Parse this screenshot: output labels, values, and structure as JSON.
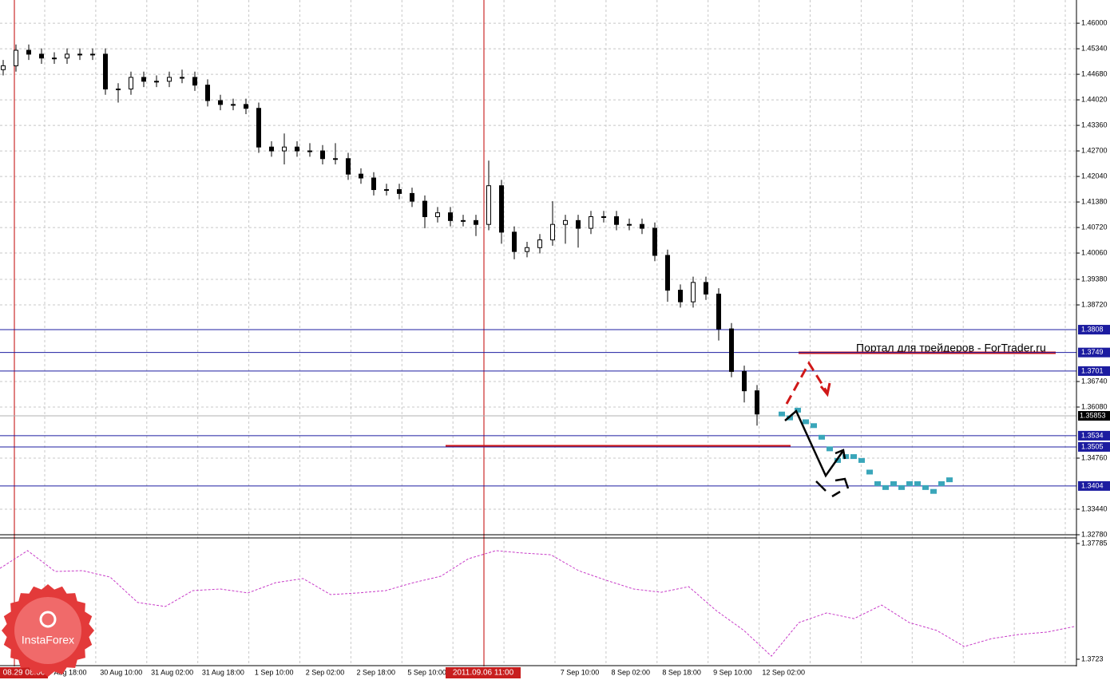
{
  "chart_data": {
    "type": "candlestick",
    "candles": [
      [
        1.448,
        1.4505,
        1.4465,
        1.449
      ],
      [
        1.449,
        1.4545,
        1.4475,
        1.453
      ],
      [
        1.453,
        1.4545,
        1.4505,
        1.452
      ],
      [
        1.452,
        1.4535,
        1.4495,
        1.451
      ],
      [
        1.451,
        1.4525,
        1.4495,
        1.451
      ],
      [
        1.451,
        1.4535,
        1.4495,
        1.452
      ],
      [
        1.452,
        1.4535,
        1.4505,
        1.452
      ],
      [
        1.452,
        1.4535,
        1.4505,
        1.452
      ],
      [
        1.452,
        1.4535,
        1.4415,
        1.443
      ],
      [
        1.443,
        1.4445,
        1.4395,
        1.443
      ],
      [
        1.443,
        1.4475,
        1.4415,
        1.446
      ],
      [
        1.446,
        1.4475,
        1.4435,
        1.445
      ],
      [
        1.445,
        1.4465,
        1.4435,
        1.445
      ],
      [
        1.445,
        1.4475,
        1.4435,
        1.446
      ],
      [
        1.446,
        1.448,
        1.4445,
        1.446
      ],
      [
        1.446,
        1.4475,
        1.4425,
        1.444
      ],
      [
        1.444,
        1.4455,
        1.4385,
        1.44
      ],
      [
        1.44,
        1.4415,
        1.4375,
        1.439
      ],
      [
        1.439,
        1.4405,
        1.4375,
        1.439
      ],
      [
        1.439,
        1.4405,
        1.4365,
        1.438
      ],
      [
        1.438,
        1.4395,
        1.4265,
        1.428
      ],
      [
        1.428,
        1.4295,
        1.4255,
        1.427
      ],
      [
        1.427,
        1.4315,
        1.4235,
        1.428
      ],
      [
        1.428,
        1.4295,
        1.4255,
        1.427
      ],
      [
        1.427,
        1.429,
        1.4255,
        1.427
      ],
      [
        1.427,
        1.4285,
        1.4235,
        1.425
      ],
      [
        1.425,
        1.429,
        1.4235,
        1.425
      ],
      [
        1.425,
        1.4265,
        1.4195,
        1.421
      ],
      [
        1.421,
        1.4225,
        1.4185,
        1.42
      ],
      [
        1.42,
        1.4215,
        1.4155,
        1.417
      ],
      [
        1.417,
        1.4185,
        1.4155,
        1.417
      ],
      [
        1.417,
        1.4185,
        1.4145,
        1.416
      ],
      [
        1.416,
        1.4175,
        1.4125,
        1.414
      ],
      [
        1.414,
        1.4155,
        1.407,
        1.41
      ],
      [
        1.41,
        1.4125,
        1.4085,
        1.411
      ],
      [
        1.411,
        1.4125,
        1.4075,
        1.409
      ],
      [
        1.409,
        1.4105,
        1.4075,
        1.409
      ],
      [
        1.409,
        1.4105,
        1.405,
        1.408
      ],
      [
        1.408,
        1.4245,
        1.4065,
        1.418
      ],
      [
        1.418,
        1.4195,
        1.403,
        1.406
      ],
      [
        1.406,
        1.4075,
        1.399,
        1.401
      ],
      [
        1.401,
        1.4035,
        1.3995,
        1.402
      ],
      [
        1.402,
        1.4055,
        1.4005,
        1.404
      ],
      [
        1.404,
        1.414,
        1.4025,
        1.408
      ],
      [
        1.408,
        1.4105,
        1.403,
        1.409
      ],
      [
        1.409,
        1.4105,
        1.402,
        1.407
      ],
      [
        1.407,
        1.4115,
        1.4055,
        1.41
      ],
      [
        1.41,
        1.4115,
        1.4085,
        1.41
      ],
      [
        1.41,
        1.4115,
        1.4065,
        1.408
      ],
      [
        1.408,
        1.4095,
        1.4065,
        1.408
      ],
      [
        1.408,
        1.4095,
        1.4055,
        1.407
      ],
      [
        1.407,
        1.4085,
        1.3985,
        1.4
      ],
      [
        1.4,
        1.4015,
        1.388,
        1.391
      ],
      [
        1.391,
        1.3925,
        1.3865,
        1.388
      ],
      [
        1.388,
        1.3945,
        1.3865,
        1.393
      ],
      [
        1.393,
        1.3945,
        1.3885,
        1.39
      ],
      [
        1.39,
        1.3915,
        1.378,
        1.381
      ],
      [
        1.381,
        1.3825,
        1.3685,
        1.37
      ],
      [
        1.37,
        1.3715,
        1.362,
        1.365
      ],
      [
        1.365,
        1.3665,
        1.356,
        1.359
      ]
    ],
    "ylim": [
      1.3278,
      1.466
    ],
    "yticks": [
      {
        "value": 1.46,
        "label": "1.46000"
      },
      {
        "value": 1.4534,
        "label": "1.45340"
      },
      {
        "value": 1.4468,
        "label": "1.44680"
      },
      {
        "value": 1.4402,
        "label": "1.44020"
      },
      {
        "value": 1.4336,
        "label": "1.43360"
      },
      {
        "value": 1.427,
        "label": "1.42700"
      },
      {
        "value": 1.4204,
        "label": "1.42040"
      },
      {
        "value": 1.4138,
        "label": "1.41380"
      },
      {
        "value": 1.4072,
        "label": "1.40720"
      },
      {
        "value": 1.4006,
        "label": "1.40060"
      },
      {
        "value": 1.3938,
        "label": "1.39380"
      },
      {
        "value": 1.3872,
        "label": "1.38720"
      },
      {
        "value": 1.3674,
        "label": "1.36740"
      },
      {
        "value": 1.3608,
        "label": "1.36080"
      },
      {
        "value": 1.3476,
        "label": "1.34760"
      },
      {
        "value": 1.3344,
        "label": "1.33440"
      },
      {
        "value": 1.3278,
        "label": "1.32780"
      }
    ],
    "grid": true,
    "levels": [
      1.3808,
      1.3749,
      1.3701,
      1.3534,
      1.3505,
      1.3404
    ],
    "level_color": "#1c1ca0",
    "last_price": 1.35853,
    "forecast": {
      "color": "#3aa6ba",
      "values": [
        1.359,
        1.358,
        1.36,
        1.357,
        1.356,
        1.353,
        1.35,
        1.347,
        1.348,
        1.348,
        1.347,
        1.344,
        1.341,
        1.34,
        1.341,
        1.34,
        1.341,
        1.341,
        1.34,
        1.339,
        1.341,
        1.342
      ]
    },
    "indicator": {
      "color": "#c83cc8",
      "ylim": [
        1.3723,
        1.37785
      ],
      "yticks": [
        1.37785,
        1.3723
      ],
      "values": [
        1.37666,
        1.37751,
        1.37651,
        1.37655,
        1.37624,
        1.37502,
        1.37483,
        1.37559,
        1.37567,
        1.37548,
        1.37597,
        1.37617,
        1.3754,
        1.37548,
        1.37559,
        1.37597,
        1.37628,
        1.37712,
        1.37751,
        1.37739,
        1.37731,
        1.37655,
        1.37609,
        1.37567,
        1.37551,
        1.37578,
        1.37463,
        1.37368,
        1.37245,
        1.37406,
        1.37452,
        1.37425,
        1.3749,
        1.37406,
        1.37368,
        1.37291,
        1.37329,
        1.37349,
        1.3736,
        1.37387
      ]
    },
    "time_labels": [
      "Aug 18:00",
      "30 Aug 10:00",
      "31 Aug 02:00",
      "31 Aug 18:00",
      "1 Sep 10:00",
      "2 Sep 02:00",
      "2 Sep 18:00",
      "5 Sep 10:00",
      null,
      null,
      "7 Sep 10:00",
      "8 Sep 02:00",
      "8 Sep 18:00",
      "9 Sep 10:00",
      "12 Sep 02:00"
    ],
    "cursor_labels": [
      "08.29 08:00",
      "2011.09.06 11:00"
    ],
    "watermark": "Портал для трейдеров - ForTrader.ru",
    "logo": "InstaForex"
  }
}
